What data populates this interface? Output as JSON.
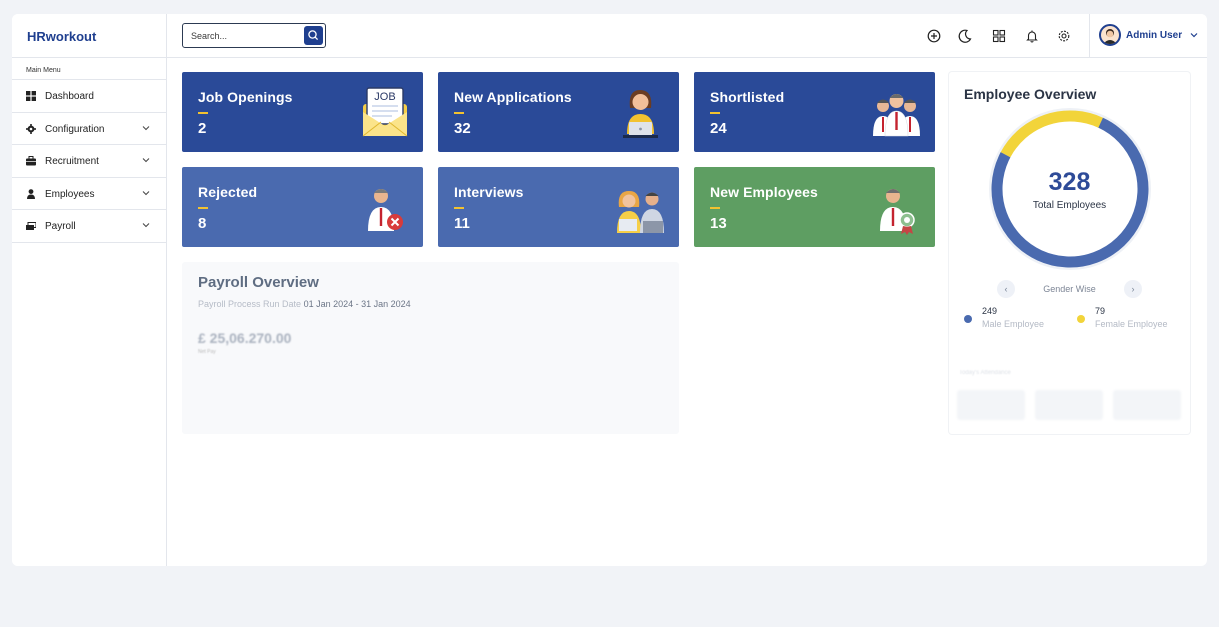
{
  "brand": "HRworkout",
  "search": {
    "placeholder": "Search..."
  },
  "topbar_icons": [
    "plus-circle-icon",
    "moon-icon",
    "grid-icon",
    "bell-icon",
    "gear-icon"
  ],
  "user": {
    "name": "Admin User"
  },
  "sidebar": {
    "heading": "Main Menu",
    "items": [
      {
        "label": "Dashboard",
        "icon": "dashboard-icon",
        "has_submenu": false
      },
      {
        "label": "Configuration",
        "icon": "gear-icon",
        "has_submenu": true
      },
      {
        "label": "Recruitment",
        "icon": "briefcase-icon",
        "has_submenu": true
      },
      {
        "label": "Employees",
        "icon": "user-icon",
        "has_submenu": true
      },
      {
        "label": "Payroll",
        "icon": "money-icon",
        "has_submenu": true
      }
    ]
  },
  "cards": [
    {
      "label": "Job Openings",
      "value": "2",
      "icon": "job-envelope-icon",
      "color": "#2a4a98"
    },
    {
      "label": "New Applications",
      "value": "32",
      "icon": "applicant-laptop-icon",
      "color": "#2a4a98"
    },
    {
      "label": "Shortlisted",
      "value": "24",
      "icon": "group-people-icon",
      "color": "#2a4a98"
    },
    {
      "label": "Rejected",
      "value": "8",
      "icon": "rejected-person-icon",
      "color": "#4a6aaf"
    },
    {
      "label": "Interviews",
      "value": "11",
      "icon": "interview-people-icon",
      "color": "#4a6aaf"
    },
    {
      "label": "New Employees",
      "value": "13",
      "icon": "new-employee-badge-icon",
      "color": "#5e9e62"
    }
  ],
  "payroll": {
    "title": "Payroll Overview",
    "run_date_label": "Payroll Process Run Date",
    "run_date": "01 Jan 2024 - 31 Jan 2024",
    "amount": "£ 25,06.270.00",
    "amount_label": "Net Pay"
  },
  "overview": {
    "title": "Employee Overview",
    "total": "328",
    "total_label": "Total Employees",
    "gender_label": "Gender Wise",
    "male": {
      "count": "249",
      "label": "Male Employee",
      "color": "#4a6aaf"
    },
    "female": {
      "count": "79",
      "label": "Female Employee",
      "color": "#f2d43a"
    },
    "faded_heading": "Today's Attendance"
  }
}
